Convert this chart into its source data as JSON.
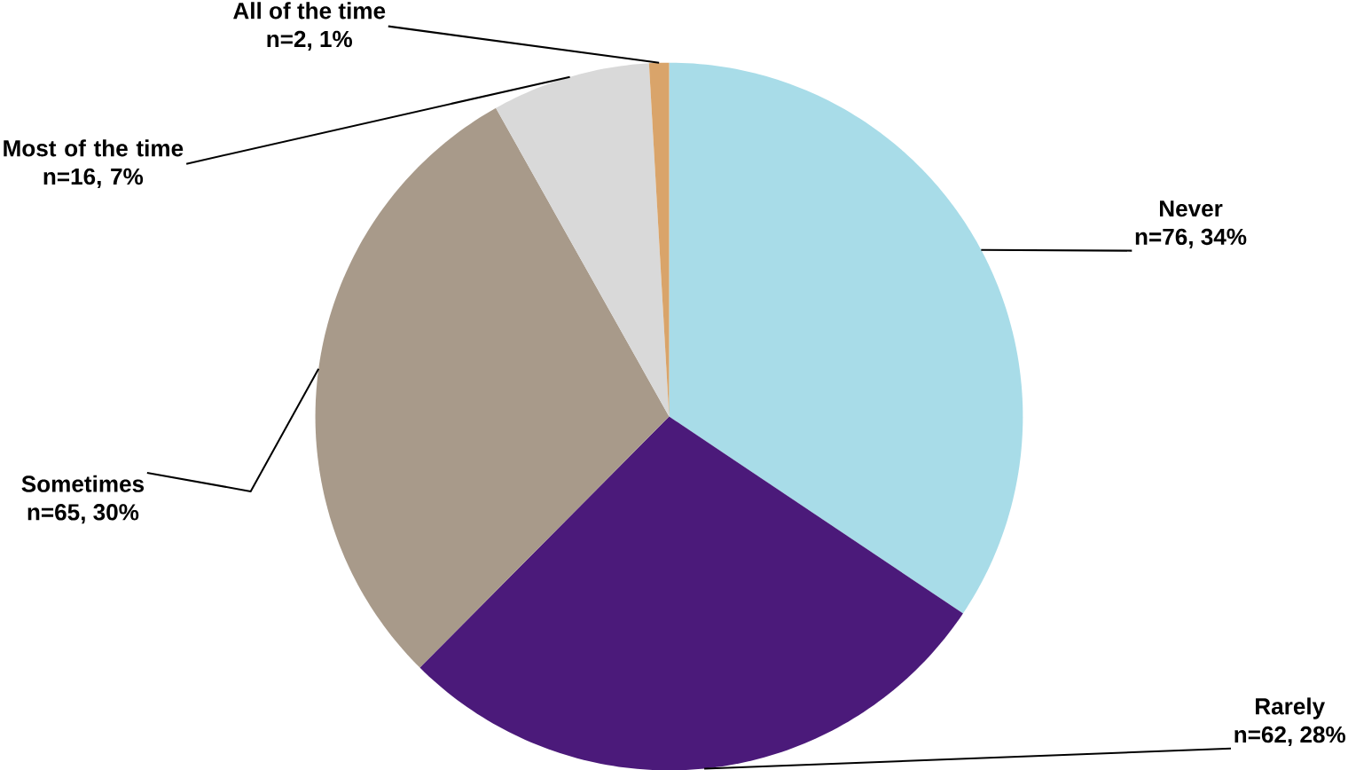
{
  "chart_data": {
    "type": "pie",
    "categories": [
      "Never",
      "Rarely",
      "Sometimes",
      "Most of the time",
      "All of the time"
    ],
    "values": [
      76,
      62,
      65,
      16,
      2
    ],
    "value_labels": [
      "n=76, 34%",
      "n=62, 28%",
      "n=65, 30%",
      "n=16, 7%",
      "n=2, 1%"
    ],
    "colors": [
      "#a8dce8",
      "#4b1a7a",
      "#a89a8a",
      "#d9d9d9",
      "#d9a46a"
    ]
  }
}
